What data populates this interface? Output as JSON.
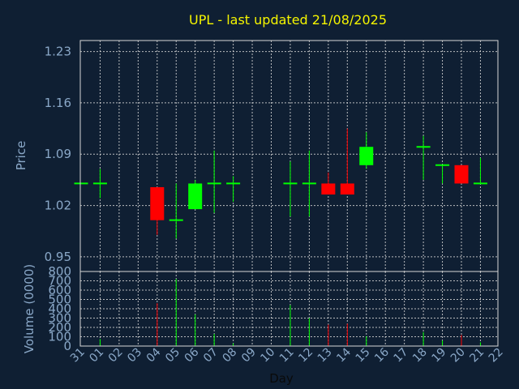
{
  "chart_data": {
    "type": "candlestick",
    "title": "UPL - last updated 21/08/2025",
    "xlabel": "Day",
    "ylabel_price": "Price",
    "ylabel_volume": "Volume (0000)",
    "price_ylim": [
      0.93,
      1.245
    ],
    "price_ticks": [
      "1.23",
      "1.16",
      "1.09",
      "1.02",
      "0.95"
    ],
    "price_tick_values": [
      1.23,
      1.16,
      1.09,
      1.02,
      0.95
    ],
    "volume_ylim": [
      0,
      800
    ],
    "volume_ticks": [
      "800",
      "700",
      "600",
      "500",
      "400",
      "300",
      "200",
      "100",
      "0"
    ],
    "volume_tick_values": [
      800,
      700,
      600,
      500,
      400,
      300,
      200,
      100,
      0
    ],
    "x_labels": [
      "31",
      "01",
      "02",
      "03",
      "04",
      "05",
      "06",
      "07",
      "08",
      "09",
      "10",
      "11",
      "12",
      "13",
      "14",
      "15",
      "16",
      "17",
      "18",
      "19",
      "20",
      "21",
      "22"
    ],
    "candles": [
      {
        "i": 0,
        "open": 1.05,
        "high": 1.05,
        "low": 1.05,
        "close": 1.05,
        "volume": 0
      },
      {
        "i": 1,
        "open": 1.05,
        "high": 1.07,
        "low": 1.03,
        "close": 1.05,
        "volume": 75
      },
      {
        "i": 4,
        "open": 1.045,
        "high": 1.045,
        "low": 0.98,
        "close": 1.0,
        "volume": 460
      },
      {
        "i": 5,
        "open": 1.0,
        "high": 1.05,
        "low": 0.975,
        "close": 1.0,
        "volume": 720
      },
      {
        "i": 6,
        "open": 1.015,
        "high": 1.055,
        "low": 1.015,
        "close": 1.05,
        "volume": 340
      },
      {
        "i": 7,
        "open": 1.05,
        "high": 1.095,
        "low": 1.01,
        "close": 1.05,
        "volume": 130
      },
      {
        "i": 8,
        "open": 1.05,
        "high": 1.06,
        "low": 1.025,
        "close": 1.05,
        "volume": 30
      },
      {
        "i": 11,
        "open": 1.05,
        "high": 1.08,
        "low": 1.005,
        "close": 1.05,
        "volume": 440
      },
      {
        "i": 12,
        "open": 1.05,
        "high": 1.095,
        "low": 1.005,
        "close": 1.05,
        "volume": 300
      },
      {
        "i": 13,
        "open": 1.05,
        "high": 1.065,
        "low": 1.035,
        "close": 1.035,
        "volume": 230
      },
      {
        "i": 14,
        "open": 1.05,
        "high": 1.125,
        "low": 1.035,
        "close": 1.035,
        "volume": 240
      },
      {
        "i": 15,
        "open": 1.075,
        "high": 1.12,
        "low": 1.07,
        "close": 1.1,
        "volume": 105
      },
      {
        "i": 18,
        "open": 1.1,
        "high": 1.115,
        "low": 1.055,
        "close": 1.1,
        "volume": 150
      },
      {
        "i": 19,
        "open": 1.075,
        "high": 1.075,
        "low": 1.05,
        "close": 1.075,
        "volume": 60
      },
      {
        "i": 20,
        "open": 1.075,
        "high": 1.075,
        "low": 1.05,
        "close": 1.05,
        "volume": 120
      },
      {
        "i": 21,
        "open": 1.05,
        "high": 1.085,
        "low": 1.05,
        "close": 1.05,
        "volume": 40
      }
    ],
    "colors": {
      "background": "#0f1f33",
      "up": "#00ff00",
      "down": "#ff0000",
      "grid": "#d7d7d7",
      "title": "#f5f500",
      "tick": "#8aa8c8"
    },
    "grid": true
  }
}
